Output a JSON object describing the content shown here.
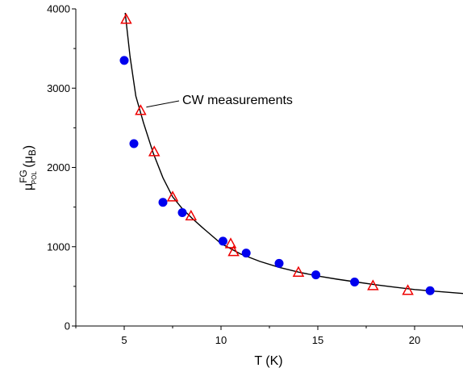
{
  "chart_data": {
    "type": "scatter",
    "xlabel": "T (K)",
    "ylabel": {
      "base": "μ",
      "superscript": "FG",
      "subscript": "POL",
      "unit_open": " (μ",
      "unit_subscript": "B",
      "unit_close": ")"
    },
    "xlim": [
      2.5,
      22.5
    ],
    "ylim": [
      0,
      4000
    ],
    "xticks": [
      5,
      10,
      15,
      20
    ],
    "yticks": [
      0,
      1000,
      2000,
      3000,
      4000
    ],
    "grid": false,
    "series": [
      {
        "marker": "circle-filled",
        "color": "#0000ee",
        "x": [
          5.0,
          5.5,
          7.0,
          8.0,
          10.1,
          11.3,
          13.0,
          14.9,
          16.9,
          20.8
        ],
        "y": [
          3350,
          2300,
          1560,
          1430,
          1070,
          920,
          790,
          645,
          555,
          445
        ]
      },
      {
        "name": "CW measurements",
        "marker": "triangle-open",
        "color": "#ee0000",
        "x": [
          5.1,
          5.85,
          6.55,
          7.5,
          8.45,
          10.5,
          10.65,
          14.0,
          17.85,
          19.65
        ],
        "y": [
          3870,
          2720,
          2200,
          1630,
          1390,
          1040,
          940,
          680,
          510,
          450
        ]
      },
      {
        "marker": "line",
        "color": "#000000",
        "x": [
          5.05,
          5.3,
          5.6,
          6.0,
          6.5,
          7.0,
          7.5,
          8.0,
          8.5,
          9.0,
          10.0,
          11.0,
          12.0,
          13.0,
          14.0,
          15.0,
          16.0,
          17.0,
          18.0,
          19.0,
          20.0,
          21.0,
          22.5
        ],
        "y": [
          3950,
          3400,
          2900,
          2560,
          2180,
          1870,
          1630,
          1480,
          1360,
          1250,
          1040,
          910,
          815,
          740,
          680,
          630,
          590,
          555,
          520,
          490,
          460,
          440,
          410
        ]
      }
    ],
    "annotations": [
      {
        "text": "CW measurements",
        "x": 8.0,
        "y": 2850,
        "points_to": {
          "x": 5.85,
          "y": 2720
        }
      }
    ]
  }
}
